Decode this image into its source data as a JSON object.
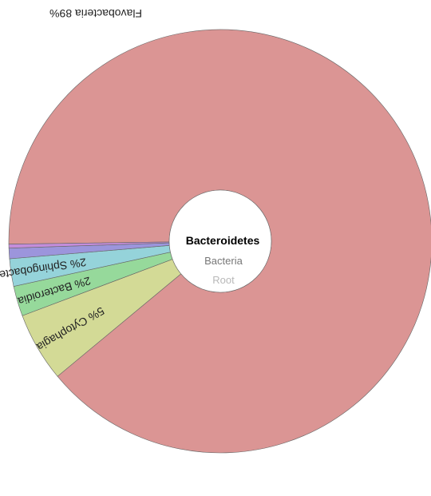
{
  "breadcrumb": {
    "current": "Bacteroidetes",
    "parent": "Bacteria",
    "root": "Root"
  },
  "chart_data": {
    "type": "pie",
    "title": "",
    "start_angle_deg": 179.2,
    "categories": [
      "Flavobacteria",
      "Cytophagia",
      "Bacteroidia",
      "Sphingobacteriia",
      "(unlabeled)",
      "(unlabeled)"
    ],
    "values": [
      89.2,
      5.3,
      2.3,
      2.1,
      0.8,
      0.3
    ],
    "labels": [
      {
        "percent": "89%",
        "name": "Flavobacteria"
      },
      {
        "percent": "5%",
        "name": "Cytophagia"
      },
      {
        "percent": "2%",
        "name": "Bacteroidia"
      },
      {
        "percent": "2%",
        "name": "Sphingobacteriia"
      }
    ],
    "colors": [
      "#db9594",
      "#d3da96",
      "#96d99b",
      "#95d3da",
      "#9c95dc",
      "#c48ddb"
    ]
  }
}
